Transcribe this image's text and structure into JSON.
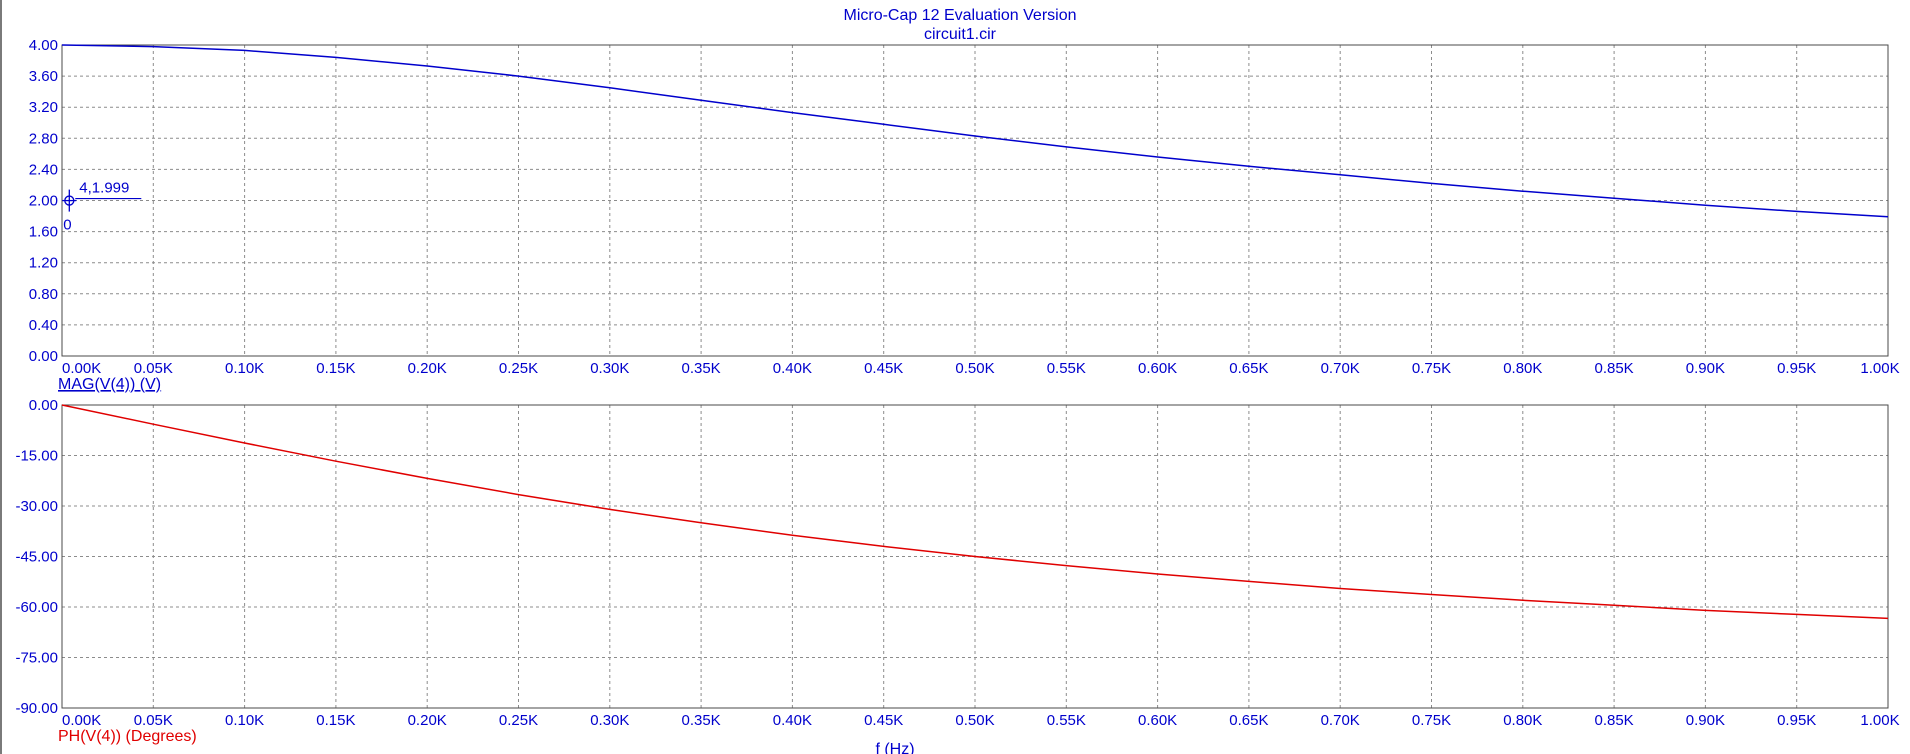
{
  "header": {
    "title": "Micro-Cap 12 Evaluation Version",
    "subtitle": "circuit1.cir"
  },
  "colors": {
    "text": "#0000cc",
    "magnitude": "#0000cc",
    "phase": "#e00000",
    "grid": "#8c8c8c",
    "frame": "#4a4a4a",
    "background": "#ffffff"
  },
  "cursor": {
    "readout": "4,1.999",
    "index": "0",
    "x": 4,
    "y": 1.999,
    "icon": "crosshair-cursor-icon"
  },
  "chart_data": [
    {
      "type": "line",
      "xlabel": "",
      "ylabel": "MAG(V(4)) (V)",
      "xlim": [
        0,
        1000
      ],
      "ylim": [
        0,
        4
      ],
      "grid": true,
      "x_ticks": [
        0,
        50,
        100,
        150,
        200,
        250,
        300,
        350,
        400,
        450,
        500,
        550,
        600,
        650,
        700,
        750,
        800,
        850,
        900,
        950,
        1000
      ],
      "x_tick_labels": [
        "0.00K",
        "0.05K",
        "0.10K",
        "0.15K",
        "0.20K",
        "0.25K",
        "0.30K",
        "0.35K",
        "0.40K",
        "0.45K",
        "0.50K",
        "0.55K",
        "0.60K",
        "0.65K",
        "0.70K",
        "0.75K",
        "0.80K",
        "0.85K",
        "0.90K",
        "0.95K",
        "1.00K"
      ],
      "y_ticks": [
        0,
        0.4,
        0.8,
        1.2,
        1.6,
        2.0,
        2.4,
        2.8,
        3.2,
        3.6,
        4.0
      ],
      "y_tick_labels": [
        "0.00",
        "0.40",
        "0.80",
        "1.20",
        "1.60",
        "2.00",
        "2.40",
        "2.80",
        "3.20",
        "3.60",
        "4.00"
      ],
      "series": [
        {
          "name": "MAG(V(4)) (V)",
          "color": "#0000cc",
          "x": [
            0,
            50,
            100,
            150,
            200,
            250,
            300,
            350,
            400,
            450,
            500,
            550,
            600,
            650,
            700,
            750,
            800,
            850,
            900,
            950,
            1000
          ],
          "values": [
            4.0,
            3.98,
            3.93,
            3.84,
            3.73,
            3.6,
            3.45,
            3.29,
            3.13,
            2.98,
            2.83,
            2.69,
            2.56,
            2.44,
            2.33,
            2.22,
            2.12,
            2.03,
            1.94,
            1.86,
            1.79
          ]
        }
      ]
    },
    {
      "type": "line",
      "xlabel": "f (Hz)",
      "ylabel": "PH(V(4)) (Degrees)",
      "xlim": [
        0,
        1000
      ],
      "ylim": [
        -90,
        0
      ],
      "grid": true,
      "x_ticks": [
        0,
        50,
        100,
        150,
        200,
        250,
        300,
        350,
        400,
        450,
        500,
        550,
        600,
        650,
        700,
        750,
        800,
        850,
        900,
        950,
        1000
      ],
      "x_tick_labels": [
        "0.00K",
        "0.05K",
        "0.10K",
        "0.15K",
        "0.20K",
        "0.25K",
        "0.30K",
        "0.35K",
        "0.40K",
        "0.45K",
        "0.50K",
        "0.55K",
        "0.60K",
        "0.65K",
        "0.70K",
        "0.75K",
        "0.80K",
        "0.85K",
        "0.90K",
        "0.95K",
        "1.00K"
      ],
      "y_ticks": [
        0,
        -15,
        -30,
        -45,
        -60,
        -75,
        -90
      ],
      "y_tick_labels": [
        "0.00",
        "-15.00",
        "-30.00",
        "-45.00",
        "-60.00",
        "-75.00",
        "-90.00"
      ],
      "series": [
        {
          "name": "PH(V(4)) (Degrees)",
          "color": "#e00000",
          "x": [
            0,
            50,
            100,
            150,
            200,
            250,
            300,
            350,
            400,
            450,
            500,
            550,
            600,
            650,
            700,
            750,
            800,
            850,
            900,
            950,
            1000
          ],
          "values": [
            0,
            -5.7,
            -11.3,
            -16.7,
            -21.8,
            -26.6,
            -31.0,
            -35.0,
            -38.7,
            -42.0,
            -45.0,
            -47.7,
            -50.2,
            -52.4,
            -54.5,
            -56.3,
            -58.0,
            -59.5,
            -61.0,
            -62.2,
            -63.4
          ]
        }
      ]
    }
  ]
}
